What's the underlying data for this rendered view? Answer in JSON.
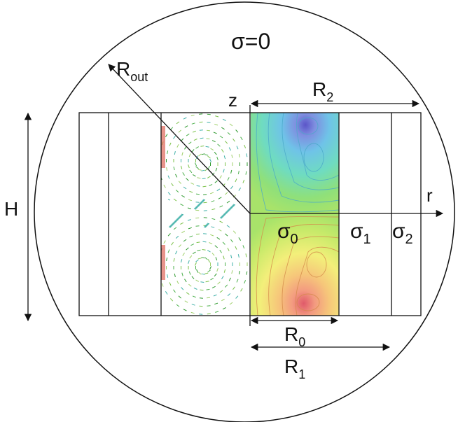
{
  "labels": {
    "sigma_outside": "σ=0",
    "r_out_main": "R",
    "r_out_sub": "out",
    "z_axis": "z",
    "r_axis": "r",
    "h": "H",
    "r2_main": "R",
    "r2_sub": "2",
    "r0_main": "R",
    "r0_sub": "0",
    "r1_main": "R",
    "r1_sub": "1",
    "sigma0_main": "σ",
    "sigma0_sub": "0",
    "sigma1_main": "σ",
    "sigma1_sub": "1",
    "sigma2_main": "σ",
    "sigma2_sub": "2"
  },
  "colors": {
    "line": "#111111",
    "field_low": "#6a5acd",
    "field_high": "#e25a5a",
    "arrows": "#3aa33a"
  }
}
